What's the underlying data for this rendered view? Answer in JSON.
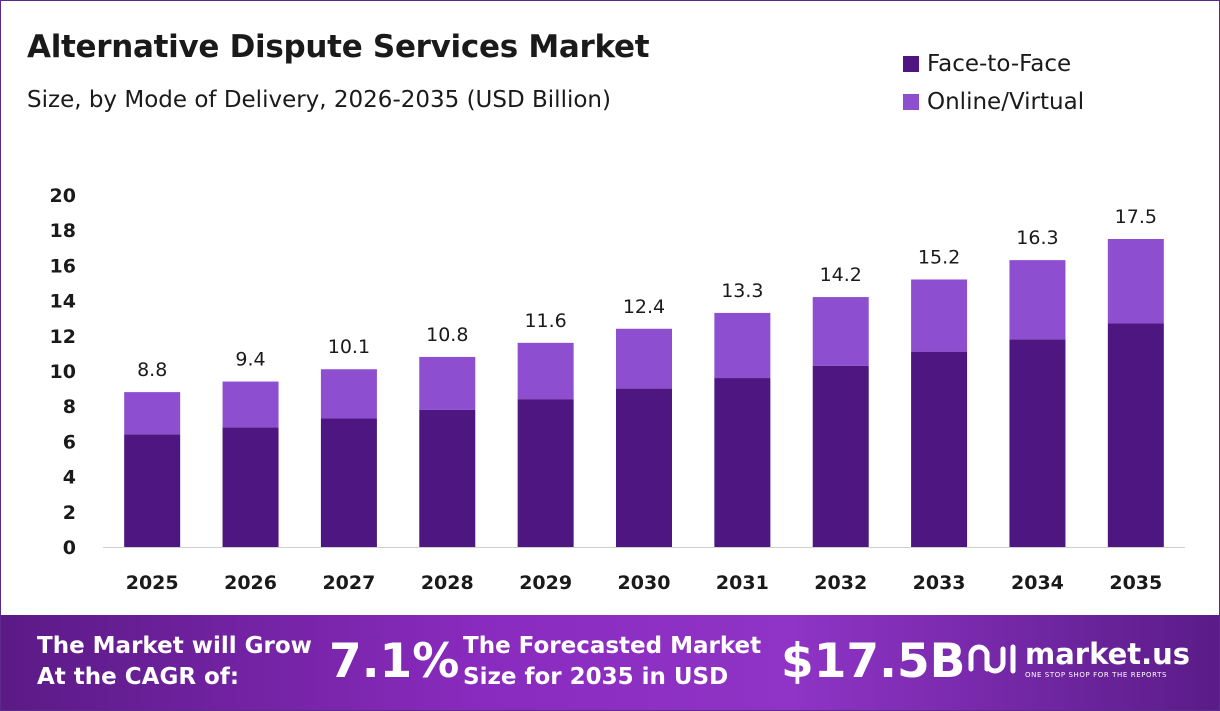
{
  "header": {
    "title": "Alternative Dispute Services Market",
    "subtitle": "Size, by Mode of Delivery, 2026-2035 (USD Billion)"
  },
  "colors": {
    "face_to_face": "#4e1680",
    "online_virtual": "#8d4fd0"
  },
  "chart_data": {
    "type": "bar",
    "stacked": true,
    "categories": [
      "2025",
      "2026",
      "2027",
      "2028",
      "2029",
      "2030",
      "2031",
      "2032",
      "2033",
      "2034",
      "2035"
    ],
    "series": [
      {
        "name": "Face-to-Face",
        "values": [
          6.4,
          6.8,
          7.3,
          7.8,
          8.4,
          9.0,
          9.6,
          10.3,
          11.1,
          11.8,
          12.7
        ]
      },
      {
        "name": "Online/Virtual",
        "values": [
          2.4,
          2.6,
          2.8,
          3.0,
          3.2,
          3.4,
          3.7,
          3.9,
          4.1,
          4.5,
          4.8
        ]
      }
    ],
    "totals": [
      8.8,
      9.4,
      10.1,
      10.8,
      11.6,
      12.4,
      13.3,
      14.2,
      15.2,
      16.3,
      17.5
    ],
    "yticks": [
      0,
      2,
      4,
      6,
      8,
      10,
      12,
      14,
      16,
      18,
      20
    ],
    "ylim": [
      0,
      20
    ],
    "grid": false,
    "legend": "top-right"
  },
  "footer": {
    "cagr_label_line1": "The Market will Grow",
    "cagr_label_line2": "At the CAGR of:",
    "cagr_value": "7.1%",
    "forecast_label_line1": "The Forecasted Market",
    "forecast_label_line2": "Size for 2035 in USD",
    "forecast_value": "$17.5B",
    "brand": "market.us",
    "brand_tagline": "ONE STOP SHOP FOR THE REPORTS"
  }
}
